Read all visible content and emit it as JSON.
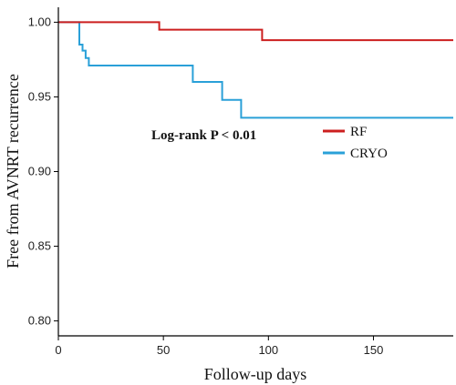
{
  "chart_data": {
    "type": "line",
    "title": "",
    "xlabel": "Follow-up days",
    "ylabel": "Free from AVNRT recurrence",
    "xlim": [
      0,
      188
    ],
    "ylim": [
      0.79,
      1.01
    ],
    "x_ticks": [
      0,
      50,
      100,
      150
    ],
    "y_ticks": [
      0.8,
      0.85,
      0.9,
      0.95,
      1.0
    ],
    "x_tick_labels": [
      "0",
      "50",
      "100",
      "150"
    ],
    "y_tick_labels": [
      "0.80",
      "0.85",
      "0.90",
      "0.95",
      "1.00"
    ],
    "step": true,
    "grid": false,
    "legend_position": "right",
    "annotation": "Log-rank P < 0.01",
    "series": [
      {
        "name": "RF",
        "color": "#cc1f1f",
        "points": [
          [
            0,
            1.0
          ],
          [
            48,
            1.0
          ],
          [
            48,
            0.995
          ],
          [
            97,
            0.995
          ],
          [
            97,
            0.988
          ],
          [
            188,
            0.988
          ]
        ]
      },
      {
        "name": "CRYO",
        "color": "#2aa0d8",
        "points": [
          [
            0,
            1.0
          ],
          [
            10,
            1.0
          ],
          [
            10,
            0.985
          ],
          [
            11.5,
            0.985
          ],
          [
            11.5,
            0.981
          ],
          [
            13,
            0.981
          ],
          [
            13,
            0.976
          ],
          [
            14.5,
            0.976
          ],
          [
            14.5,
            0.971
          ],
          [
            64,
            0.971
          ],
          [
            64,
            0.96
          ],
          [
            78,
            0.96
          ],
          [
            78,
            0.948
          ],
          [
            87,
            0.948
          ],
          [
            87,
            0.936
          ],
          [
            188,
            0.936
          ]
        ]
      }
    ]
  }
}
